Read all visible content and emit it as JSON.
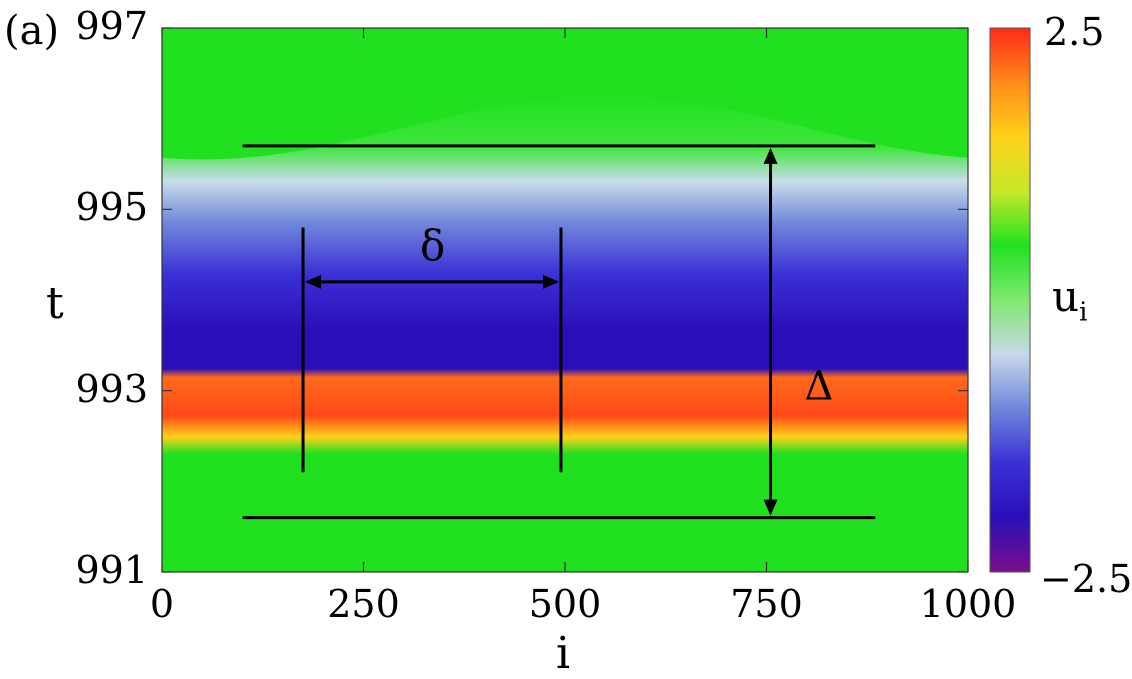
{
  "panel_label": "(a)",
  "chart_data": {
    "type": "heatmap",
    "xlabel": "i",
    "ylabel": "t",
    "xlim": [
      0,
      1000
    ],
    "ylim": [
      991,
      997
    ],
    "x_ticks": [
      "0",
      "250",
      "500",
      "750",
      "1000"
    ],
    "y_ticks": [
      "991",
      "993",
      "995",
      "997"
    ],
    "colorbar": {
      "label_main": "u",
      "label_sub": "i",
      "min_label": "−2.5",
      "max_label": "2.5",
      "range": [
        -2.5,
        2.5
      ],
      "colors": [
        "#7a0e8c",
        "#2a0fb8",
        "#3b2fd6",
        "#6f86da",
        "#c9d8ea",
        "#7fe870",
        "#20e220",
        "#c8e82a",
        "#ffd21a",
        "#ff8a1a",
        "#ff2a1a"
      ]
    },
    "annotations": {
      "delta_small": "δ",
      "delta_large": "Δ",
      "delta_small_x": [
        175,
        495
      ],
      "delta_small_t": 994.2,
      "delta_large_i": 755,
      "delta_large_t": [
        991.6,
        995.7
      ],
      "hlines_t": [
        995.7,
        991.6
      ],
      "hlines_x": [
        100,
        885
      ]
    }
  }
}
